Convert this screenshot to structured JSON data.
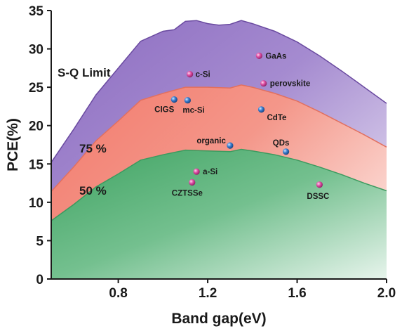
{
  "chart_data": {
    "type": "area",
    "xlabel": "Band gap(eV)",
    "ylabel": "PCE(%)",
    "xlim": [
      0.5,
      2.0
    ],
    "ylim": [
      0,
      35
    ],
    "x_ticks": [
      "0.8",
      "1.2",
      "1.6",
      "2.0"
    ],
    "x_tick_values": [
      0.8,
      1.2,
      1.6,
      2.0
    ],
    "y_ticks": [
      "0",
      "5",
      "10",
      "15",
      "20",
      "25",
      "30",
      "35"
    ],
    "y_tick_values": [
      0,
      5,
      10,
      15,
      20,
      25,
      30,
      35
    ],
    "grid": false,
    "series": [
      {
        "name": "S-Q Limit",
        "color": "#7d5cb5",
        "x": [
          0.5,
          0.6,
          0.7,
          0.8,
          0.9,
          1.0,
          1.05,
          1.1,
          1.15,
          1.2,
          1.25,
          1.3,
          1.35,
          1.4,
          1.5,
          1.6,
          1.7,
          1.8,
          1.9,
          2.0
        ],
        "y": [
          15.2,
          19.5,
          24.0,
          27.5,
          31.0,
          32.3,
          32.5,
          33.6,
          33.7,
          33.3,
          33.1,
          33.2,
          33.7,
          33.3,
          32.3,
          30.9,
          29.1,
          27.1,
          25.0,
          22.9
        ]
      },
      {
        "name": "75 %",
        "color": "#f08878",
        "x": [
          0.5,
          0.6,
          0.7,
          0.8,
          0.9,
          1.0,
          1.1,
          1.2,
          1.3,
          1.35,
          1.4,
          1.5,
          1.6,
          1.7,
          1.8,
          1.9,
          2.0
        ],
        "y": [
          11.4,
          14.6,
          18.0,
          20.6,
          23.3,
          24.2,
          25.0,
          25.0,
          24.9,
          25.3,
          25.0,
          24.2,
          23.2,
          21.8,
          20.3,
          18.8,
          17.2
        ]
      },
      {
        "name": "50 %",
        "color": "#4eaa70",
        "x": [
          0.5,
          0.6,
          0.7,
          0.8,
          0.9,
          1.0,
          1.1,
          1.2,
          1.3,
          1.35,
          1.4,
          1.5,
          1.6,
          1.7,
          1.8,
          1.9,
          2.0
        ],
        "y": [
          7.6,
          9.7,
          12.0,
          13.7,
          15.5,
          16.2,
          16.8,
          16.7,
          16.6,
          16.9,
          16.7,
          16.2,
          15.5,
          14.6,
          13.6,
          12.5,
          11.5
        ]
      }
    ],
    "region_labels": [
      "S-Q Limit",
      "75 %",
      "50 %"
    ],
    "points": [
      {
        "label": "GaAs",
        "x": 1.43,
        "y": 29.1,
        "color": "#d9469c"
      },
      {
        "label": "c-Si",
        "x": 1.12,
        "y": 26.7,
        "color": "#d9469c"
      },
      {
        "label": "perovskite",
        "x": 1.45,
        "y": 25.5,
        "color": "#d9469c"
      },
      {
        "label": "CIGS",
        "x": 1.05,
        "y": 23.4,
        "color": "#3a7fd0"
      },
      {
        "label": "mc-Si",
        "x": 1.11,
        "y": 23.3,
        "color": "#3a7fd0"
      },
      {
        "label": "CdTe",
        "x": 1.44,
        "y": 22.1,
        "color": "#3a7fd0"
      },
      {
        "label": "organic",
        "x": 1.3,
        "y": 17.4,
        "color": "#3a7fd0"
      },
      {
        "label": "QDs",
        "x": 1.55,
        "y": 16.6,
        "color": "#3a7fd0"
      },
      {
        "label": "a-Si",
        "x": 1.15,
        "y": 14.0,
        "color": "#d9469c"
      },
      {
        "label": "CZTSSe",
        "x": 1.13,
        "y": 12.6,
        "color": "#d9469c"
      },
      {
        "label": "DSSC",
        "x": 1.7,
        "y": 12.3,
        "color": "#d9469c"
      }
    ]
  }
}
